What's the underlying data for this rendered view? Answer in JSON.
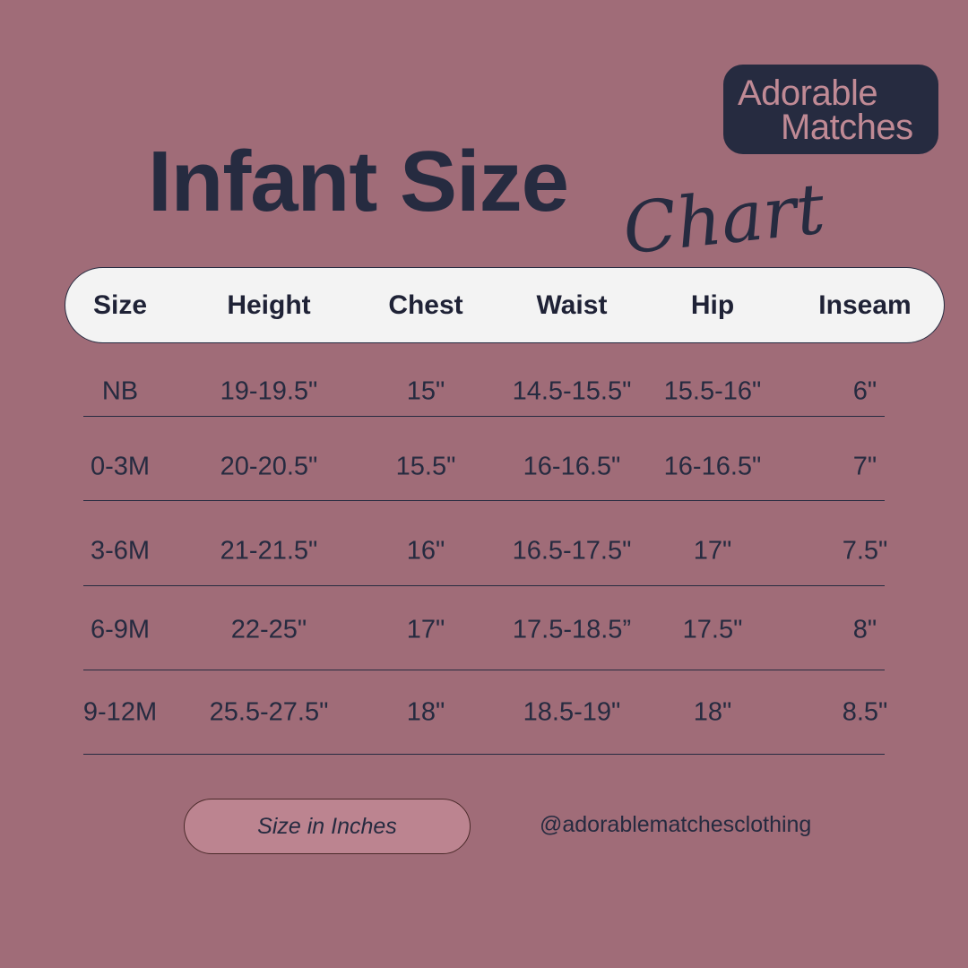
{
  "logo": {
    "line1": "Adorable",
    "line2": "Matches"
  },
  "title": {
    "main": "Infant Size",
    "script": "Chart"
  },
  "table": {
    "headers": [
      "Size",
      "Height",
      "Chest",
      "Waist",
      "Hip",
      "Inseam"
    ],
    "rows": [
      [
        "NB",
        "19-19.5\"",
        "15\"",
        "14.5-15.5\"",
        "15.5-16\"",
        "6\""
      ],
      [
        "0-3M",
        "20-20.5\"",
        "15.5\"",
        "16-16.5\"",
        "16-16.5\"",
        "7\""
      ],
      [
        "3-6M",
        "21-21.5\"",
        "16\"",
        "16.5-17.5\"",
        "17\"",
        "7.5\""
      ],
      [
        "6-9M",
        "22-25\"",
        "17\"",
        "17.5-18.5”",
        "17.5\"",
        "8\""
      ],
      [
        "9-12M",
        "25.5-27.5\"",
        "18\"",
        "18.5-19\"",
        "18\"",
        "8.5\""
      ]
    ]
  },
  "footer": {
    "units_label": "Size in Inches",
    "handle": "@adorablematchesclothing"
  },
  "colors": {
    "background": "#a06c78",
    "navy": "#262b40",
    "header_bg": "#f3f3f3",
    "pill": "#bc8490"
  }
}
